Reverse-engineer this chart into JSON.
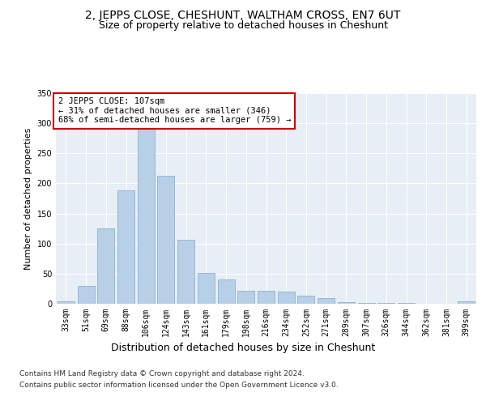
{
  "title": "2, JEPPS CLOSE, CHESHUNT, WALTHAM CROSS, EN7 6UT",
  "subtitle": "Size of property relative to detached houses in Cheshunt",
  "xlabel": "Distribution of detached houses by size in Cheshunt",
  "ylabel": "Number of detached properties",
  "categories": [
    "33sqm",
    "51sqm",
    "69sqm",
    "88sqm",
    "106sqm",
    "124sqm",
    "143sqm",
    "161sqm",
    "179sqm",
    "198sqm",
    "216sqm",
    "234sqm",
    "252sqm",
    "271sqm",
    "289sqm",
    "307sqm",
    "326sqm",
    "344sqm",
    "362sqm",
    "381sqm",
    "399sqm"
  ],
  "values": [
    4,
    30,
    125,
    188,
    295,
    213,
    107,
    51,
    41,
    22,
    21,
    20,
    14,
    10,
    3,
    2,
    2,
    1,
    0,
    0,
    4
  ],
  "bar_color": "#b8cfe8",
  "bar_edge_color": "#7aaad0",
  "highlight_bar_index": 4,
  "annotation_text": "2 JEPPS CLOSE: 107sqm\n← 31% of detached houses are smaller (346)\n68% of semi-detached houses are larger (759) →",
  "annotation_box_color": "white",
  "annotation_box_edge_color": "#cc0000",
  "ylim": [
    0,
    350
  ],
  "yticks": [
    0,
    50,
    100,
    150,
    200,
    250,
    300,
    350
  ],
  "bg_color": "#e8eef5",
  "footer_line1": "Contains HM Land Registry data © Crown copyright and database right 2024.",
  "footer_line2": "Contains public sector information licensed under the Open Government Licence v3.0.",
  "title_fontsize": 10,
  "subtitle_fontsize": 9,
  "xlabel_fontsize": 9,
  "ylabel_fontsize": 8,
  "tick_fontsize": 7,
  "annotation_fontsize": 7.5,
  "footer_fontsize": 6.5
}
